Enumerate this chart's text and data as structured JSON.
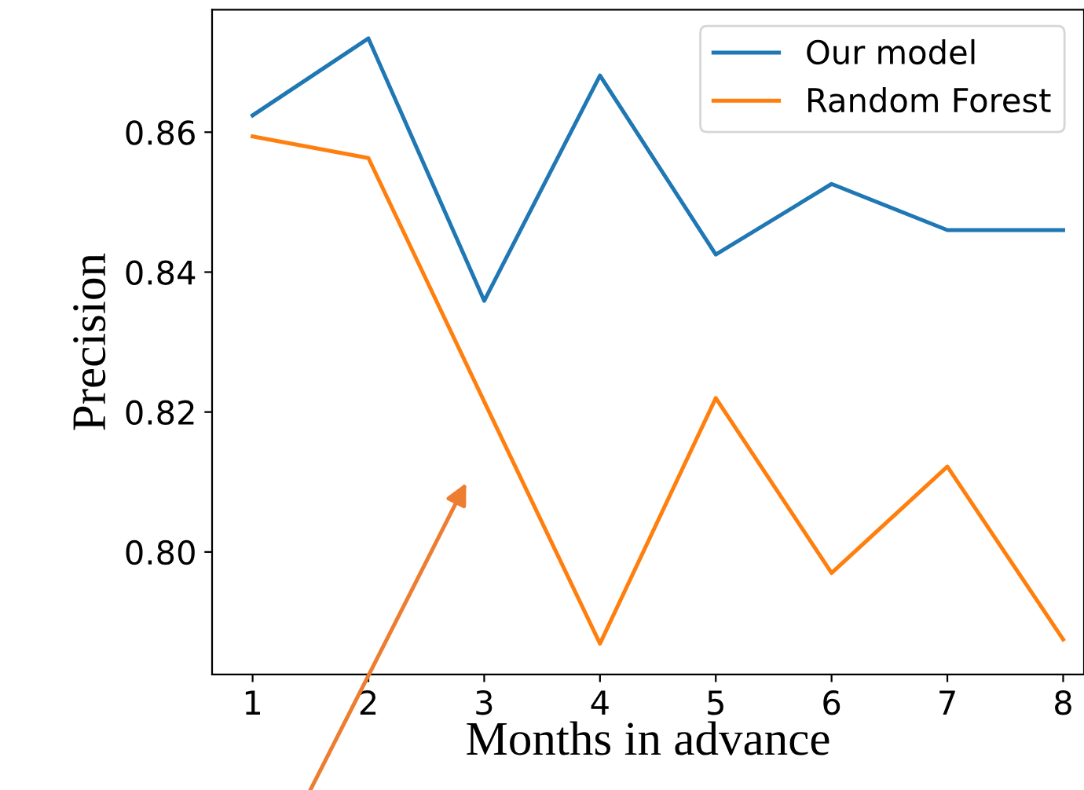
{
  "chart_data": {
    "type": "line",
    "xlabel": "Months in advance",
    "ylabel": "Precision",
    "x": [
      1,
      2,
      3,
      4,
      5,
      6,
      7,
      8
    ],
    "series": [
      {
        "name": "Our model",
        "color": "#1f77b4",
        "values": [
          0.8624,
          0.8734,
          0.8359,
          0.8681,
          0.8425,
          0.8526,
          0.846,
          0.846
        ]
      },
      {
        "name": "Random Forest",
        "color": "#ff7f0e",
        "values": [
          0.8594,
          0.8563,
          0.8215,
          0.7869,
          0.822,
          0.797,
          0.8122,
          0.7875
        ]
      }
    ],
    "xlim": [
      0.65,
      8.18
    ],
    "ylim": [
      0.7825,
      0.8775
    ],
    "xticks": [
      1,
      2,
      3,
      4,
      5,
      6,
      7,
      8
    ],
    "yticks": [
      {
        "value": 0.8,
        "label": "0.80"
      },
      {
        "value": 0.82,
        "label": "0.82"
      },
      {
        "value": 0.84,
        "label": "0.84"
      },
      {
        "value": 0.86,
        "label": "0.86"
      }
    ],
    "legend": "top right",
    "grid": false,
    "marker": "none",
    "line_style": "solid"
  }
}
